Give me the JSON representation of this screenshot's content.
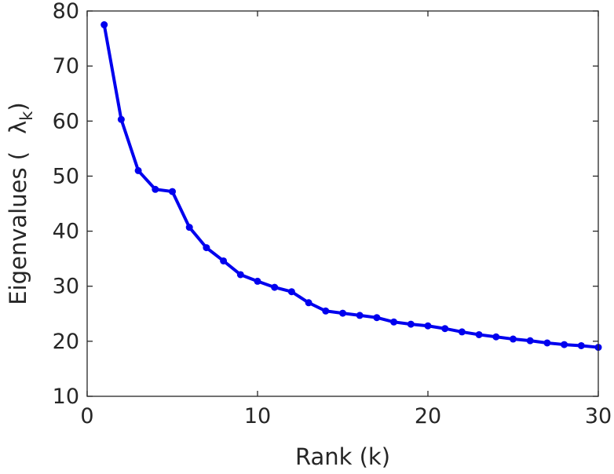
{
  "chart_data": {
    "type": "line",
    "xlabel": "Rank (k)",
    "ylabel": {
      "prefix": "Eigenvalues (",
      "symbol": "λ",
      "subscript": "k",
      "suffix": ")"
    },
    "xlim": [
      0,
      30
    ],
    "ylim": [
      10,
      80
    ],
    "xticks": [
      0,
      10,
      20,
      30
    ],
    "yticks": [
      10,
      20,
      30,
      40,
      50,
      60,
      70,
      80
    ],
    "grid": false,
    "box": true,
    "series": [
      {
        "color": "#0000ee",
        "marker": "circle",
        "x": [
          1,
          2,
          3,
          4,
          5,
          6,
          7,
          8,
          9,
          10,
          11,
          12,
          13,
          14,
          15,
          16,
          17,
          18,
          19,
          20,
          21,
          22,
          23,
          24,
          25,
          26,
          27,
          28,
          29,
          30
        ],
        "y": [
          77.5,
          60.3,
          51.0,
          47.6,
          47.2,
          40.7,
          37.0,
          34.6,
          32.1,
          30.9,
          29.8,
          29.0,
          27.0,
          25.5,
          25.1,
          24.7,
          24.3,
          23.5,
          23.1,
          22.8,
          22.3,
          21.7,
          21.2,
          20.8,
          20.4,
          20.1,
          19.7,
          19.4,
          19.2,
          18.9
        ]
      }
    ]
  }
}
